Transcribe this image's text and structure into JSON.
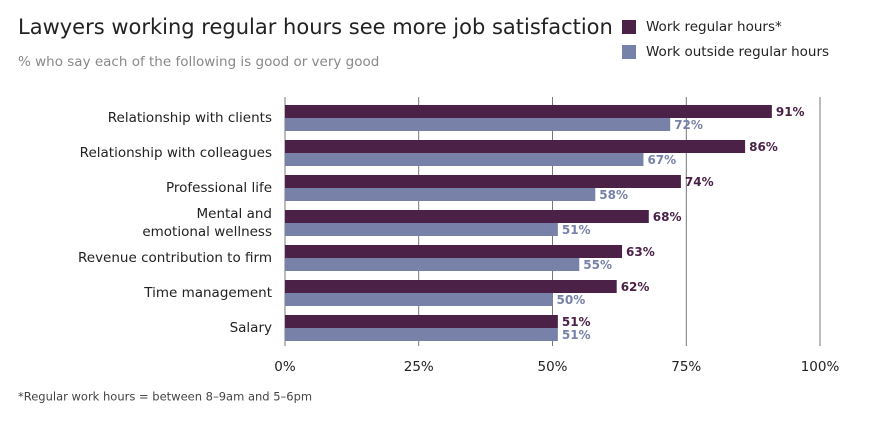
{
  "chart_data": {
    "type": "bar",
    "orientation": "horizontal",
    "title": "Lawyers working regular hours see more job satisfaction",
    "subtitle": "% who say each of the following is good or very good",
    "footnote": "*Regular work hours = between 8–9am and 5–6pm",
    "categories": [
      "Relationship with clients",
      "Relationship with colleagues",
      "Professional life",
      "Mental and\nemotional wellness",
      "Revenue contribution to firm",
      "Time management",
      "Salary"
    ],
    "series": [
      {
        "name": "Work regular hours*",
        "color": "#4b2148",
        "values": [
          91,
          86,
          74,
          68,
          63,
          62,
          51
        ],
        "value_labels": [
          "91%",
          "86%",
          "74%",
          "68%",
          "63%",
          "62%",
          "51%"
        ]
      },
      {
        "name": "Work outside regular hours",
        "color": "#7881a8",
        "values": [
          72,
          67,
          58,
          51,
          55,
          50,
          51
        ],
        "value_labels": [
          "72%",
          "67%",
          "58%",
          "51%",
          "55%",
          "50%",
          "51%"
        ]
      }
    ],
    "xlim": [
      0,
      100
    ],
    "xticks": [
      {
        "value": 0,
        "label": "0%"
      },
      {
        "value": 25,
        "label": "25%"
      },
      {
        "value": 50,
        "label": "50%"
      },
      {
        "value": 75,
        "label": "75%"
      },
      {
        "value": 100,
        "label": "100%"
      }
    ],
    "grid": true,
    "legend": "top-right"
  }
}
